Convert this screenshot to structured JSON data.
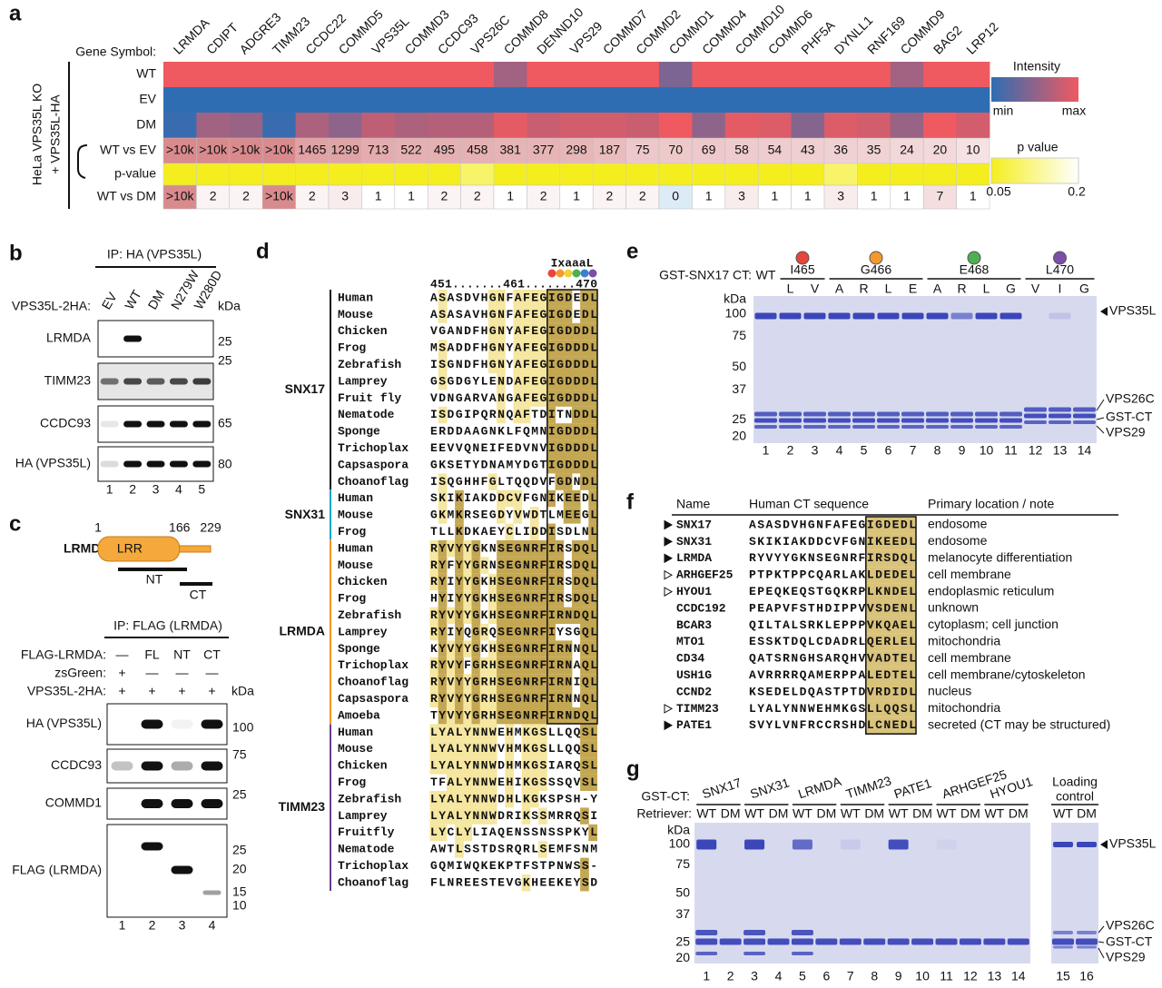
{
  "panel_a": {
    "label": "a",
    "gene_symbol_label": "Gene Symbol:",
    "genes": [
      {
        "name": "LRMDA",
        "color": "#f0952a"
      },
      {
        "name": "CDIPT",
        "color": "#f0952a"
      },
      {
        "name": "ADGRE3",
        "color": "#f0952a"
      },
      {
        "name": "TIMM23",
        "color": "#f0952a"
      },
      {
        "name": "CCDC22",
        "color": "#1f9a47"
      },
      {
        "name": "COMMD5",
        "color": "#1f9a47"
      },
      {
        "name": "VPS35L",
        "color": "#1f9a47"
      },
      {
        "name": "COMMD3",
        "color": "#1f9a47"
      },
      {
        "name": "CCDC93",
        "color": "#1f9a47"
      },
      {
        "name": "VPS26C",
        "color": "#1f9a47"
      },
      {
        "name": "COMMD8",
        "color": "#1f9a47"
      },
      {
        "name": "DENND10",
        "color": "#1f9a47"
      },
      {
        "name": "VPS29",
        "color": "#1f9a47"
      },
      {
        "name": "COMMD7",
        "color": "#1f9a47"
      },
      {
        "name": "COMMD2",
        "color": "#1f9a47"
      },
      {
        "name": "COMMD1",
        "color": "#1f9a47"
      },
      {
        "name": "COMMD4",
        "color": "#1f9a47"
      },
      {
        "name": "COMMD10",
        "color": "#1f9a47"
      },
      {
        "name": "COMMD6",
        "color": "#1f9a47"
      },
      {
        "name": "PHF5A",
        "color": "#f0952a"
      },
      {
        "name": "DYNLL1",
        "color": "#f0952a"
      },
      {
        "name": "RNF169",
        "color": "#f0952a"
      },
      {
        "name": "COMMD9",
        "color": "#1f9a47"
      },
      {
        "name": "BAG2",
        "color": "#f0952a"
      },
      {
        "name": "LRP12",
        "color": "#f0952a"
      }
    ],
    "rows": {
      "wt": {
        "label": "WT",
        "intensity": [
          1,
          1,
          1,
          1,
          1,
          1,
          1,
          1,
          1,
          1,
          0.6,
          1,
          1,
          1,
          1,
          0.4,
          1,
          1,
          1,
          1,
          1,
          1,
          0.6,
          1,
          1
        ]
      },
      "ev": {
        "label": "EV",
        "intensity": [
          0,
          0,
          0,
          0,
          0,
          0,
          0,
          0,
          0,
          0,
          0,
          0,
          0,
          0,
          0,
          0,
          0,
          0,
          0,
          0,
          0,
          0,
          0,
          0,
          0
        ]
      },
      "dm": {
        "label": "DM",
        "intensity": [
          0.05,
          0.6,
          0.55,
          0.05,
          0.65,
          0.5,
          0.75,
          0.65,
          0.7,
          0.7,
          0.95,
          0.8,
          0.85,
          0.85,
          0.8,
          1,
          0.5,
          0.95,
          0.9,
          0.45,
          0.9,
          0.85,
          0.55,
          1,
          0.85
        ]
      }
    },
    "wt_vs_ev": {
      "label": "WT vs EV",
      "values": [
        ">10k",
        ">10k",
        ">10k",
        ">10k",
        1465,
        1299,
        713,
        522,
        495,
        458,
        381,
        377,
        298,
        187,
        75,
        70,
        69,
        58,
        54,
        43,
        36,
        35,
        24,
        20,
        10
      ]
    },
    "p_value": {
      "label": "p-value",
      "values": [
        0.05,
        0.05,
        0.05,
        0.05,
        0.05,
        0.05,
        0.05,
        0.05,
        0.05,
        0.1,
        0.05,
        0.05,
        0.05,
        0.05,
        0.05,
        0.05,
        0.05,
        0.05,
        0.05,
        0.05,
        0.1,
        0.05,
        0.05,
        0.05,
        0.05
      ]
    },
    "wt_vs_dm": {
      "label": "WT vs DM",
      "values": [
        ">10k",
        2,
        2,
        ">10k",
        2,
        3,
        1,
        1,
        2,
        2,
        1,
        2,
        1,
        2,
        2,
        0,
        1,
        3,
        1,
        1,
        3,
        1,
        1,
        7,
        1
      ]
    },
    "side_label_1": "HeLa VPS35L KO",
    "side_label_2": "+ VPS35L-HA",
    "intensity_legend": {
      "title": "Intensity",
      "min": "min",
      "max": "max",
      "colors": [
        "#2f6db3",
        "#ef5a60"
      ]
    },
    "p_legend": {
      "title": "p value",
      "lim": [
        0.05,
        0.2
      ],
      "ticks": [
        0.05,
        0.2
      ],
      "colors": [
        "#f5ee1e",
        "#ffffff"
      ]
    }
  },
  "panel_b": {
    "label": "b",
    "ip": "IP: HA (VPS35L)",
    "construct_label": "VPS35L-2HA:",
    "lanes": [
      "EV",
      "WT",
      "DM",
      "N279W",
      "W280D"
    ],
    "kda": "kDa",
    "blots": [
      {
        "name": "LRMDA",
        "markers": [
          25
        ]
      },
      {
        "name": "TIMM23",
        "markers": [
          25
        ]
      },
      {
        "name": "CCDC93",
        "markers": [
          65
        ]
      },
      {
        "name": "HA (VPS35L)",
        "markers": [
          80
        ]
      }
    ],
    "lane_numbers": [
      1,
      2,
      3,
      4,
      5
    ]
  },
  "panel_c": {
    "label": "c",
    "protein": "LRMDA",
    "domain": "LRR",
    "positions": [
      1,
      166,
      229
    ],
    "nt": "NT",
    "ct": "CT",
    "ip": "IP: FLAG (LRMDA)",
    "conditions": [
      {
        "label": "FLAG-LRMDA:",
        "values": [
          "—",
          "FL",
          "NT",
          "CT"
        ]
      },
      {
        "label": "zsGreen:",
        "values": [
          "+",
          "—",
          "—",
          "—"
        ]
      },
      {
        "label": "VPS35L-2HA:",
        "values": [
          "+",
          "+",
          "+",
          "+"
        ]
      }
    ],
    "kda": "kDa",
    "blots": [
      {
        "name": "HA (VPS35L)",
        "markers": [
          100
        ]
      },
      {
        "name": "CCDC93",
        "markers": [
          75
        ]
      },
      {
        "name": "COMMD1",
        "markers": [
          25
        ]
      },
      {
        "name": "FLAG (LRMDA)",
        "markers": [
          25,
          20,
          15,
          10
        ]
      }
    ],
    "lane_numbers": [
      1,
      2,
      3,
      4
    ]
  },
  "panel_d": {
    "label": "d",
    "motif": "IxaaaL",
    "numbering": "451.......461.......470",
    "groups": [
      {
        "name": "SNX17",
        "color": "#111111",
        "rows": [
          {
            "species": "Human",
            "seq": "ASASDVHGNFAFEGIGDEDL"
          },
          {
            "species": "Mouse",
            "seq": "ASASAVHGNFAFEGIGDEDL"
          },
          {
            "species": "Chicken",
            "seq": "VGANDFHGNYAFEGIGDDDL"
          },
          {
            "species": "Frog",
            "seq": "MSADDFHGNYAFEGIGDDDL"
          },
          {
            "species": "Zebrafish",
            "seq": "ISGNDFHGNYAFEGIGDDDL"
          },
          {
            "species": "Lamprey",
            "seq": "GSGDGYLENDAFEGIGDDDL"
          },
          {
            "species": "Fruit fly",
            "seq": "VDNGARVANGAFEGIGDDDL"
          },
          {
            "species": "Nematode",
            "seq": "ISDGIPQRNQAFTDITNDDL"
          },
          {
            "species": "Sponge",
            "seq": "ERDDAAGNKLFQMNIGDDDL"
          },
          {
            "species": "Trichoplax",
            "seq": "EEVVQNEIFEDVNVIGDDDL"
          },
          {
            "species": "Capsaspora",
            "seq": "GKSETYDNAMYDGTIGDDDL"
          },
          {
            "species": "Choanoflag",
            "seq": "ISQGHHFGLTQQDVFGDNDL"
          }
        ]
      },
      {
        "name": "SNX31",
        "color": "#1aa3c9",
        "rows": [
          {
            "species": "Human",
            "seq": "SKIKIAKDDCVFGNIKEEDL"
          },
          {
            "species": "Mouse",
            "seq": "GKMKRSEGDYVWDTLMEEGL"
          },
          {
            "species": "Frog",
            "seq": "TLLKDKAEYCLIDDISDLNL"
          }
        ]
      },
      {
        "name": "LRMDA",
        "color": "#f0952a",
        "rows": [
          {
            "species": "Human",
            "seq": "RYVYYGKNSEGNRFIRSDQL"
          },
          {
            "species": "Mouse",
            "seq": "RYFYYGRNSEGNRFIRSDQL"
          },
          {
            "species": "Chicken",
            "seq": "RYIYYGKHSEGNRFIRSDQL"
          },
          {
            "species": "Frog",
            "seq": "HYIYYGKHSEGNRFIRSDQL"
          },
          {
            "species": "Zebrafish",
            "seq": "RYVYYGKHSEGNRFIRNDQL"
          },
          {
            "species": "Lamprey",
            "seq": "RYIYQGRQSEGNRFIYSGQL"
          },
          {
            "species": "Sponge",
            "seq": "KYVYYGKHSEGNRFIRNNQL"
          },
          {
            "species": "Trichoplax",
            "seq": "RYVYFGRHSEGNRFIRNAQL"
          },
          {
            "species": "Choanoflag",
            "seq": "RYVYYGRHSEGNRFIRNIQL"
          },
          {
            "species": "Capsaspora",
            "seq": "RYVYYGRHSEGNRFIRNNQL"
          },
          {
            "species": "Amoeba",
            "seq": "TYVYYGRHSEGNRFIRNDQL"
          }
        ]
      },
      {
        "name": "TIMM23",
        "color": "#6a3d8f",
        "rows": [
          {
            "species": "Human",
            "seq": "LYALYNNWEHMKGSLLQQSL"
          },
          {
            "species": "Mouse",
            "seq": "LYALYNNWVHMKGSLLQQSL"
          },
          {
            "species": "Chicken",
            "seq": "LYALYNNWDHMKGSIARQSL"
          },
          {
            "species": "Frog",
            "seq": "TFALYNNWEHIKGSSSQVSL"
          },
          {
            "species": "Zebrafish",
            "seq": "LYALYNNWDHLKGKSPSH-Y"
          },
          {
            "species": "Lamprey",
            "seq": "LYALYNNWDRIKSSMRRQSI"
          },
          {
            "species": "Fruitfly",
            "seq": "LYCLYLIAQENSSNSSPKYL"
          },
          {
            "species": "Nematode",
            "seq": "AWTLSSTDSRQRLSEMFSNM"
          },
          {
            "species": "Trichoplax",
            "seq": "GQMIWQKEKPTFSTPNWSS-"
          },
          {
            "species": "Choanoflag",
            "seq": "FLNREESTEVGKHEEKEYSD"
          }
        ]
      }
    ]
  },
  "panel_e": {
    "label": "e",
    "construct_label": "GST-SNX17 CT:",
    "wt": "WT",
    "mutations": [
      {
        "site": "I465",
        "color": "#e8453c",
        "residues": [
          "L",
          "V"
        ]
      },
      {
        "site": "G466",
        "color": "#f29a2e",
        "residues": [
          "A",
          "R",
          "L",
          "E"
        ]
      },
      {
        "site": "E468",
        "color": "#4cb050",
        "residues": [
          "A",
          "R",
          "L",
          "G"
        ]
      },
      {
        "site": "L470",
        "color": "#7b4fa8",
        "residues": [
          "V",
          "I",
          "G"
        ]
      }
    ],
    "kda": "kDa",
    "markers": [
      100,
      75,
      50,
      37,
      25,
      20
    ],
    "bands": [
      "VPS35L",
      "VPS26C",
      "GST-CT",
      "VPS29"
    ],
    "lane_numbers": [
      1,
      2,
      3,
      4,
      5,
      6,
      7,
      8,
      9,
      10,
      11,
      12,
      13,
      14
    ]
  },
  "panel_f": {
    "label": "f",
    "headers": [
      "Name",
      "Human CT sequence",
      "Primary location / note"
    ],
    "rows": [
      {
        "marker": "filled",
        "name": "SNX17",
        "color": "#111111",
        "seq": "ASASDVHGNFAFEGIGDEDL",
        "note": "endosome"
      },
      {
        "marker": "filled",
        "name": "SNX31",
        "color": "#1aa3c9",
        "seq": "SKIKIAKDDCVFGNIKEEDL",
        "note": "endosome"
      },
      {
        "marker": "filled",
        "name": "LRMDA",
        "color": "#f0952a",
        "seq": "RYVYYGKNSEGNRFIRSDQL",
        "note": "melanocyte differentiation"
      },
      {
        "marker": "open",
        "name": "ARHGEF25",
        "color": "#111111",
        "seq": "PTPKTPPCQARLAKLDEDEL",
        "note": "cell membrane"
      },
      {
        "marker": "open",
        "name": "HYOU1",
        "color": "#111111",
        "seq": "EPEQKEQSTGQKRPLKNDEL",
        "note": "endoplasmic reticulum"
      },
      {
        "name": "CCDC192",
        "color": "#111111",
        "seq": "PEAPVFSTHDIPPVVSDENL",
        "note": "unknown"
      },
      {
        "name": "BCAR3",
        "color": "#111111",
        "seq": "QILTALSRKLEPPPVKQAEL",
        "note": "cytoplasm; cell junction"
      },
      {
        "name": "MTO1",
        "color": "#111111",
        "seq": "ESSKTDQLCDADRLQERLEL",
        "note": "mitochondria"
      },
      {
        "name": "CD34",
        "color": "#111111",
        "seq": "QATSRNGHSARQHVVADTEL",
        "note": "cell membrane"
      },
      {
        "name": "USH1G",
        "color": "#111111",
        "seq": "AVRRRRQAMERPPALEDTEL",
        "note": "cell membrane/cytoskeleton"
      },
      {
        "name": "CCND2",
        "color": "#111111",
        "seq": "KSEDELDQASTPTDVRDIDL",
        "note": "nucleus"
      },
      {
        "marker": "open",
        "name": "TIMM23",
        "color": "#6a3d8f",
        "seq": "LYALYNNWEHMKGSLLQQSL",
        "note": "mitochondria"
      },
      {
        "marker": "filled",
        "name": "PATE1",
        "color": "#111111",
        "seq": "SVYLVNFRCCRSHDLCNEDL",
        "note": "secreted (CT may be structured)"
      }
    ]
  },
  "panel_g": {
    "label": "g",
    "construct_label": "GST-CT:",
    "retriever_label": "Retriever:",
    "constructs": [
      "SNX17",
      "SNX31",
      "LRMDA",
      "TIMM23",
      "PATE1",
      "ARHGEF25",
      "HYOU1"
    ],
    "loading_control": [
      "Loading",
      "control"
    ],
    "conditions": [
      "WT",
      "DM"
    ],
    "kda": "kDa",
    "markers": [
      100,
      75,
      50,
      37,
      25,
      20
    ],
    "bands": [
      "VPS35L",
      "VPS26C",
      "GST-CT",
      "VPS29"
    ],
    "lane_numbers": [
      1,
      2,
      3,
      4,
      5,
      6,
      7,
      8,
      9,
      10,
      11,
      12,
      13,
      14,
      15,
      16
    ]
  }
}
